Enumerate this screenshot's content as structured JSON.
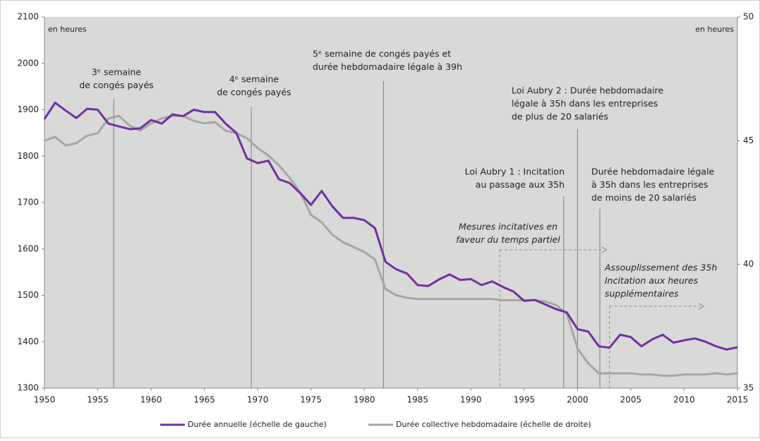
{
  "chart_data": {
    "type": "line",
    "x": [
      1950,
      1951,
      1952,
      1953,
      1954,
      1955,
      1956,
      1957,
      1958,
      1959,
      1960,
      1961,
      1962,
      1963,
      1964,
      1965,
      1966,
      1967,
      1968,
      1969,
      1970,
      1971,
      1972,
      1973,
      1974,
      1975,
      1976,
      1977,
      1978,
      1979,
      1980,
      1981,
      1982,
      1983,
      1984,
      1985,
      1986,
      1987,
      1988,
      1989,
      1990,
      1991,
      1992,
      1993,
      1994,
      1995,
      1996,
      1997,
      1998,
      1999,
      2000,
      2001,
      2002,
      2003,
      2004,
      2005,
      2006,
      2007,
      2008,
      2009,
      2010,
      2011,
      2012,
      2013,
      2014,
      2015
    ],
    "series": [
      {
        "name": "Durée annuelle (échelle de gauche)",
        "color": "#7030a0",
        "axis": "y",
        "values": [
          1880,
          1915,
          1898,
          1882,
          1902,
          1900,
          1870,
          1864,
          1858,
          1860,
          1878,
          1870,
          1890,
          1886,
          1900,
          1895,
          1895,
          1870,
          1850,
          1795,
          1785,
          1790,
          1750,
          1742,
          1720,
          1695,
          1725,
          1692,
          1667,
          1667,
          1662,
          1645,
          1572,
          1556,
          1547,
          1522,
          1520,
          1534,
          1545,
          1533,
          1535,
          1522,
          1530,
          1518,
          1508,
          1488,
          1490,
          1480,
          1470,
          1463,
          1427,
          1422,
          1390,
          1387,
          1415,
          1410,
          1390,
          1405,
          1415,
          1398,
          1403,
          1407,
          1400,
          1390,
          1383,
          1388
        ]
      },
      {
        "name": "Durée collective hebdomadaire (échelle de droite)",
        "color": "#a6a6a6",
        "axis": "y2",
        "values": [
          45.0,
          45.15,
          44.8,
          44.9,
          45.2,
          45.3,
          45.9,
          46.0,
          45.6,
          45.4,
          45.7,
          45.9,
          46.0,
          46.0,
          45.8,
          45.7,
          45.75,
          45.4,
          45.3,
          45.1,
          44.7,
          44.4,
          44.0,
          43.5,
          42.9,
          42.0,
          41.7,
          41.2,
          40.9,
          40.7,
          40.5,
          40.2,
          39.0,
          38.75,
          38.65,
          38.6,
          38.6,
          38.6,
          38.6,
          38.6,
          38.6,
          38.6,
          38.6,
          38.55,
          38.55,
          38.55,
          38.55,
          38.5,
          38.35,
          38.0,
          36.6,
          36.0,
          35.6,
          35.6,
          35.6,
          35.6,
          35.55,
          35.55,
          35.5,
          35.5,
          35.55,
          35.55,
          35.55,
          35.6,
          35.55,
          35.6
        ]
      }
    ],
    "xlim": [
      1950,
      2015
    ],
    "xticks": [
      1950,
      1955,
      1960,
      1965,
      1970,
      1975,
      1980,
      1985,
      1990,
      1995,
      2000,
      2005,
      2010,
      2015
    ],
    "ylim": [
      1300,
      2100
    ],
    "yticks": [
      1300,
      1400,
      1500,
      1600,
      1700,
      1800,
      1900,
      2000,
      2100
    ],
    "y2lim": [
      35,
      50
    ],
    "y2ticks": [
      35,
      40,
      45,
      50
    ],
    "y_unit": "en heures",
    "y2_unit": "en heures",
    "annotations": [
      {
        "x": 1956.5,
        "lines": [
          "3ᵉ semaine",
          "de congés payés"
        ]
      },
      {
        "x": 1969.4,
        "lines": [
          "4ᵉ semaine",
          "de congés payés"
        ]
      },
      {
        "x": 1981.8,
        "lines": [
          "5ᵉ semaine de congés payés et",
          "durée hebdomadaire légale à 39h"
        ]
      },
      {
        "x": 2000,
        "lines": [
          "Loi Aubry 2 : Durée hebdomadaire",
          "légale à 35h dans les entreprises",
          "de plus de 20 salariés"
        ]
      },
      {
        "x": 1998.7,
        "lines": [
          "Loi Aubry 1 : Incitation",
          "au passage aux 35h"
        ]
      },
      {
        "x": 2002.1,
        "lines": [
          "Durée hebdomadaire légale",
          "à 35h dans les entreprises",
          "de moins de 20 salariés"
        ]
      },
      {
        "x": 1992.7,
        "lines": [
          "Mesures incitatives en",
          "faveur du temps partiel"
        ]
      },
      {
        "x": 2003,
        "lines": [
          "Assouplissement des 35h",
          "Incitation aux heures",
          "supplémentaires"
        ]
      }
    ]
  }
}
